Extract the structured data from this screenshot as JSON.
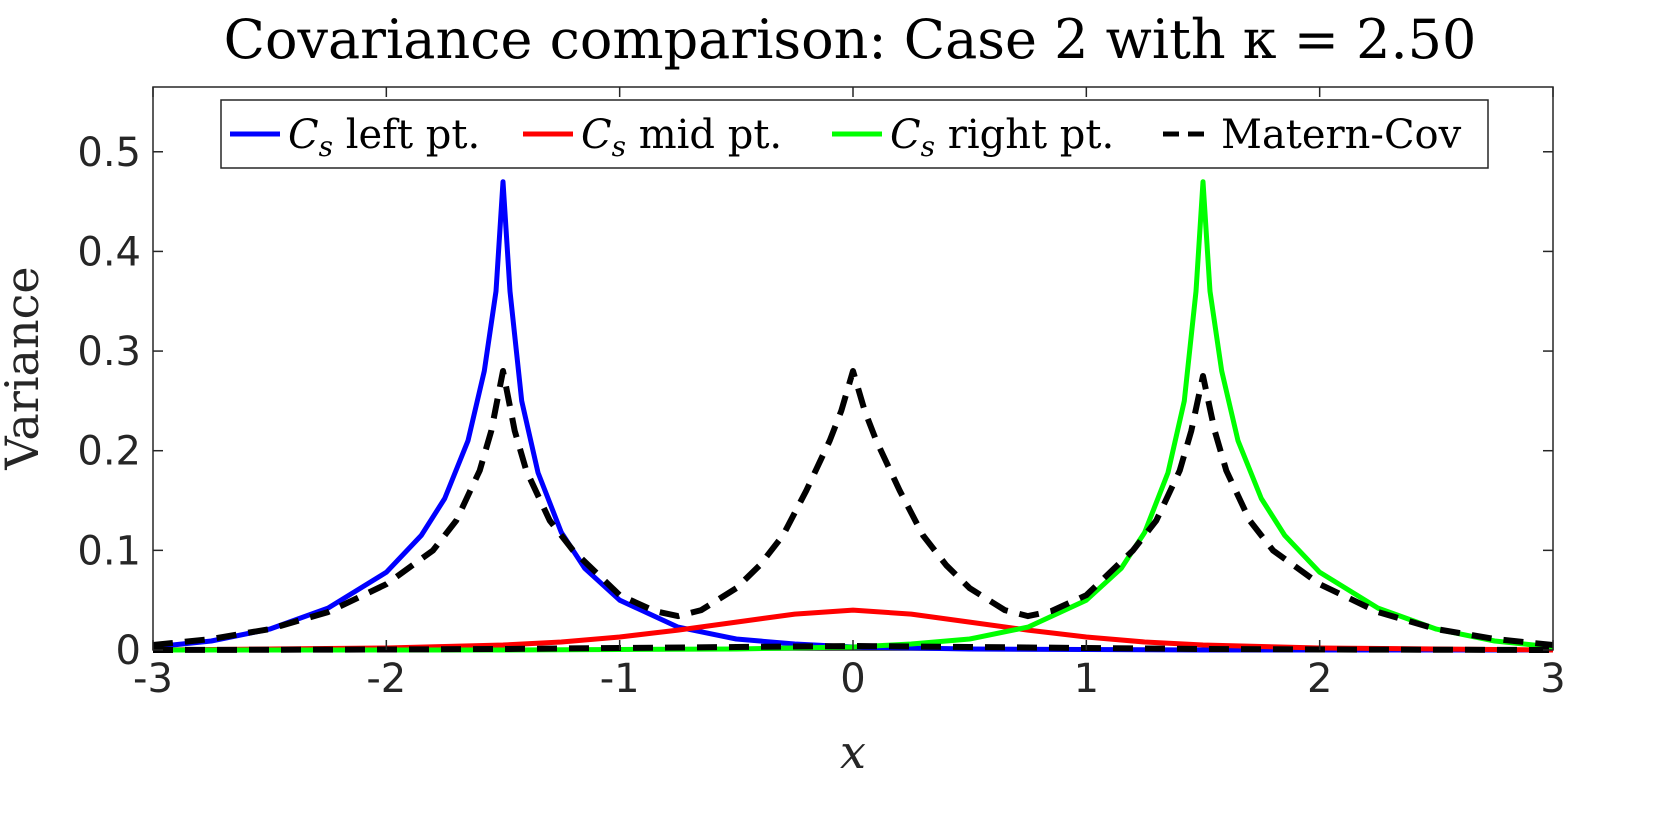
{
  "chart_data": {
    "type": "line",
    "title": "Covariance comparison: Case 2 with κ = 2.50",
    "xlabel": "x",
    "ylabel": "Variance",
    "xlim": [
      -3,
      3
    ],
    "ylim": [
      0,
      0.565
    ],
    "xticks": [
      "-3",
      "-2",
      "-1",
      "0",
      "1",
      "2",
      "3"
    ],
    "yticks": [
      "0",
      "0.1",
      "0.2",
      "0.3",
      "0.4",
      "0.5"
    ],
    "grid": false,
    "legend_position": "top",
    "legend_orientation": "horizontal",
    "series": [
      {
        "name": "C_s left pt.",
        "color": "#0000ff",
        "style": "solid",
        "x": [
          -3.0,
          -2.75,
          -2.5,
          -2.25,
          -2.0,
          -1.85,
          -1.75,
          -1.65,
          -1.58,
          -1.53,
          -1.5,
          -1.47,
          -1.42,
          -1.35,
          -1.25,
          -1.15,
          -1.0,
          -0.75,
          -0.5,
          -0.25,
          0.0,
          0.5,
          1.0,
          1.5,
          2.0,
          3.0
        ],
        "y": [
          0.003,
          0.009,
          0.021,
          0.042,
          0.078,
          0.115,
          0.152,
          0.21,
          0.28,
          0.36,
          0.47,
          0.36,
          0.25,
          0.178,
          0.118,
          0.082,
          0.05,
          0.023,
          0.011,
          0.006,
          0.003,
          0.001,
          0.0005,
          0.0,
          0.0,
          0.0
        ]
      },
      {
        "name": "C_s mid pt.",
        "color": "#ff0000",
        "style": "solid",
        "x": [
          -3.0,
          -2.5,
          -2.0,
          -1.5,
          -1.25,
          -1.0,
          -0.75,
          -0.5,
          -0.25,
          0.0,
          0.25,
          0.5,
          0.75,
          1.0,
          1.25,
          1.5,
          2.0,
          2.5,
          3.0
        ],
        "y": [
          0.0,
          0.001,
          0.002,
          0.005,
          0.008,
          0.013,
          0.02,
          0.028,
          0.036,
          0.04,
          0.036,
          0.028,
          0.02,
          0.013,
          0.008,
          0.005,
          0.002,
          0.001,
          0.0
        ]
      },
      {
        "name": "C_s right pt.",
        "color": "#00ff00",
        "style": "solid",
        "x": [
          -3.0,
          -2.0,
          -1.5,
          -1.0,
          -0.5,
          0.0,
          0.25,
          0.5,
          0.75,
          1.0,
          1.15,
          1.25,
          1.35,
          1.42,
          1.47,
          1.5,
          1.53,
          1.58,
          1.65,
          1.75,
          1.85,
          2.0,
          2.25,
          2.5,
          2.75,
          3.0
        ],
        "y": [
          0.0,
          0.0,
          0.0,
          0.0005,
          0.001,
          0.003,
          0.006,
          0.011,
          0.023,
          0.05,
          0.082,
          0.118,
          0.178,
          0.25,
          0.36,
          0.47,
          0.36,
          0.28,
          0.21,
          0.152,
          0.115,
          0.078,
          0.042,
          0.021,
          0.009,
          0.003
        ]
      },
      {
        "name": "Matern-Cov",
        "color": "#000000",
        "style": "dashed",
        "x": [
          -3.0,
          -2.75,
          -2.5,
          -2.25,
          -2.0,
          -1.8,
          -1.7,
          -1.6,
          -1.55,
          -1.5,
          -1.45,
          -1.4,
          -1.3,
          -1.2,
          -1.0,
          -0.85,
          -0.75,
          -0.65,
          -0.5,
          -0.4,
          -0.3,
          -0.2,
          -0.1,
          -0.05,
          0.0,
          0.05,
          0.1,
          0.2,
          0.3,
          0.4,
          0.5,
          0.65,
          0.75,
          0.85,
          1.0,
          1.2,
          1.3,
          1.4,
          1.45,
          1.5,
          1.55,
          1.6,
          1.7,
          1.8,
          2.0,
          2.25,
          2.5,
          2.75,
          3.0
        ],
        "y": [
          0.005,
          0.011,
          0.021,
          0.038,
          0.066,
          0.1,
          0.13,
          0.18,
          0.22,
          0.28,
          0.22,
          0.18,
          0.13,
          0.1,
          0.055,
          0.039,
          0.034,
          0.04,
          0.062,
          0.085,
          0.115,
          0.16,
          0.21,
          0.24,
          0.28,
          0.24,
          0.21,
          0.16,
          0.115,
          0.085,
          0.062,
          0.04,
          0.034,
          0.039,
          0.055,
          0.1,
          0.13,
          0.18,
          0.22,
          0.275,
          0.22,
          0.18,
          0.13,
          0.1,
          0.066,
          0.038,
          0.021,
          0.011,
          0.005
        ]
      },
      {
        "name": "",
        "color": "#000000",
        "style": "dashed",
        "x": [
          -3.0,
          -2.0,
          -1.5,
          -1.0,
          -0.5,
          0.0,
          0.5,
          1.0,
          1.5,
          2.0,
          3.0
        ],
        "y": [
          0.0,
          0.0005,
          0.001,
          0.002,
          0.003,
          0.004,
          0.003,
          0.002,
          0.001,
          0.0005,
          0.0
        ]
      }
    ]
  }
}
